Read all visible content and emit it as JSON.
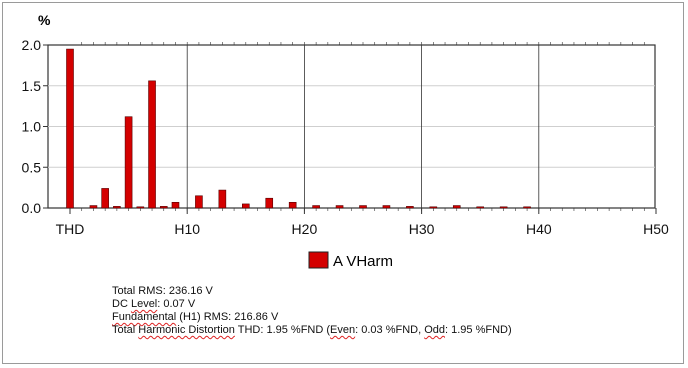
{
  "chart_data": {
    "type": "bar",
    "ylabel": "%",
    "ylim": [
      0,
      2.0
    ],
    "yticks": [
      "0.0",
      "0.5",
      "1.0",
      "1.5",
      "2.0"
    ],
    "xtick_labels": [
      "THD",
      "H10",
      "H20",
      "H30",
      "H40",
      "H50"
    ],
    "grid": true,
    "legend_position": "bottom-center",
    "series": [
      {
        "name": "A VHarm",
        "color": "#d40000",
        "points": [
          {
            "x": "THD",
            "y": 1.95
          },
          {
            "x": "H2",
            "y": 0.03
          },
          {
            "x": "H3",
            "y": 0.24
          },
          {
            "x": "H4",
            "y": 0.02
          },
          {
            "x": "H5",
            "y": 1.12
          },
          {
            "x": "H6",
            "y": 0.01
          },
          {
            "x": "H7",
            "y": 1.56
          },
          {
            "x": "H8",
            "y": 0.02
          },
          {
            "x": "H9",
            "y": 0.07
          },
          {
            "x": "H11",
            "y": 0.15
          },
          {
            "x": "H13",
            "y": 0.22
          },
          {
            "x": "H15",
            "y": 0.05
          },
          {
            "x": "H17",
            "y": 0.12
          },
          {
            "x": "H19",
            "y": 0.07
          },
          {
            "x": "H21",
            "y": 0.03
          },
          {
            "x": "H23",
            "y": 0.03
          },
          {
            "x": "H25",
            "y": 0.03
          },
          {
            "x": "H27",
            "y": 0.03
          },
          {
            "x": "H29",
            "y": 0.02
          },
          {
            "x": "H31",
            "y": 0.01
          },
          {
            "x": "H33",
            "y": 0.03
          },
          {
            "x": "H35",
            "y": 0.01
          },
          {
            "x": "H37",
            "y": 0.01
          },
          {
            "x": "H39",
            "y": 0.01
          }
        ]
      }
    ]
  },
  "legend": {
    "label": "A VHarm",
    "color": "#d40000"
  },
  "stats": {
    "total_rms": "Total RMS:  236.16 V",
    "dc_level_a": "DC ",
    "dc_level_b": "Level",
    "dc_level_c": ": 0.07 V",
    "fundamental_a": "Fundamental",
    "fundamental_b": " (H1) RMS: 216.86 V",
    "thd_a": "Total ",
    "thd_b": "Harmonic Distortion",
    "thd_c": " THD:  1.95 %FND (",
    "thd_d": "Even",
    "thd_e": ": 0.03 %FND, ",
    "thd_f": "Odd",
    "thd_g": ": 1.95 %FND)"
  }
}
